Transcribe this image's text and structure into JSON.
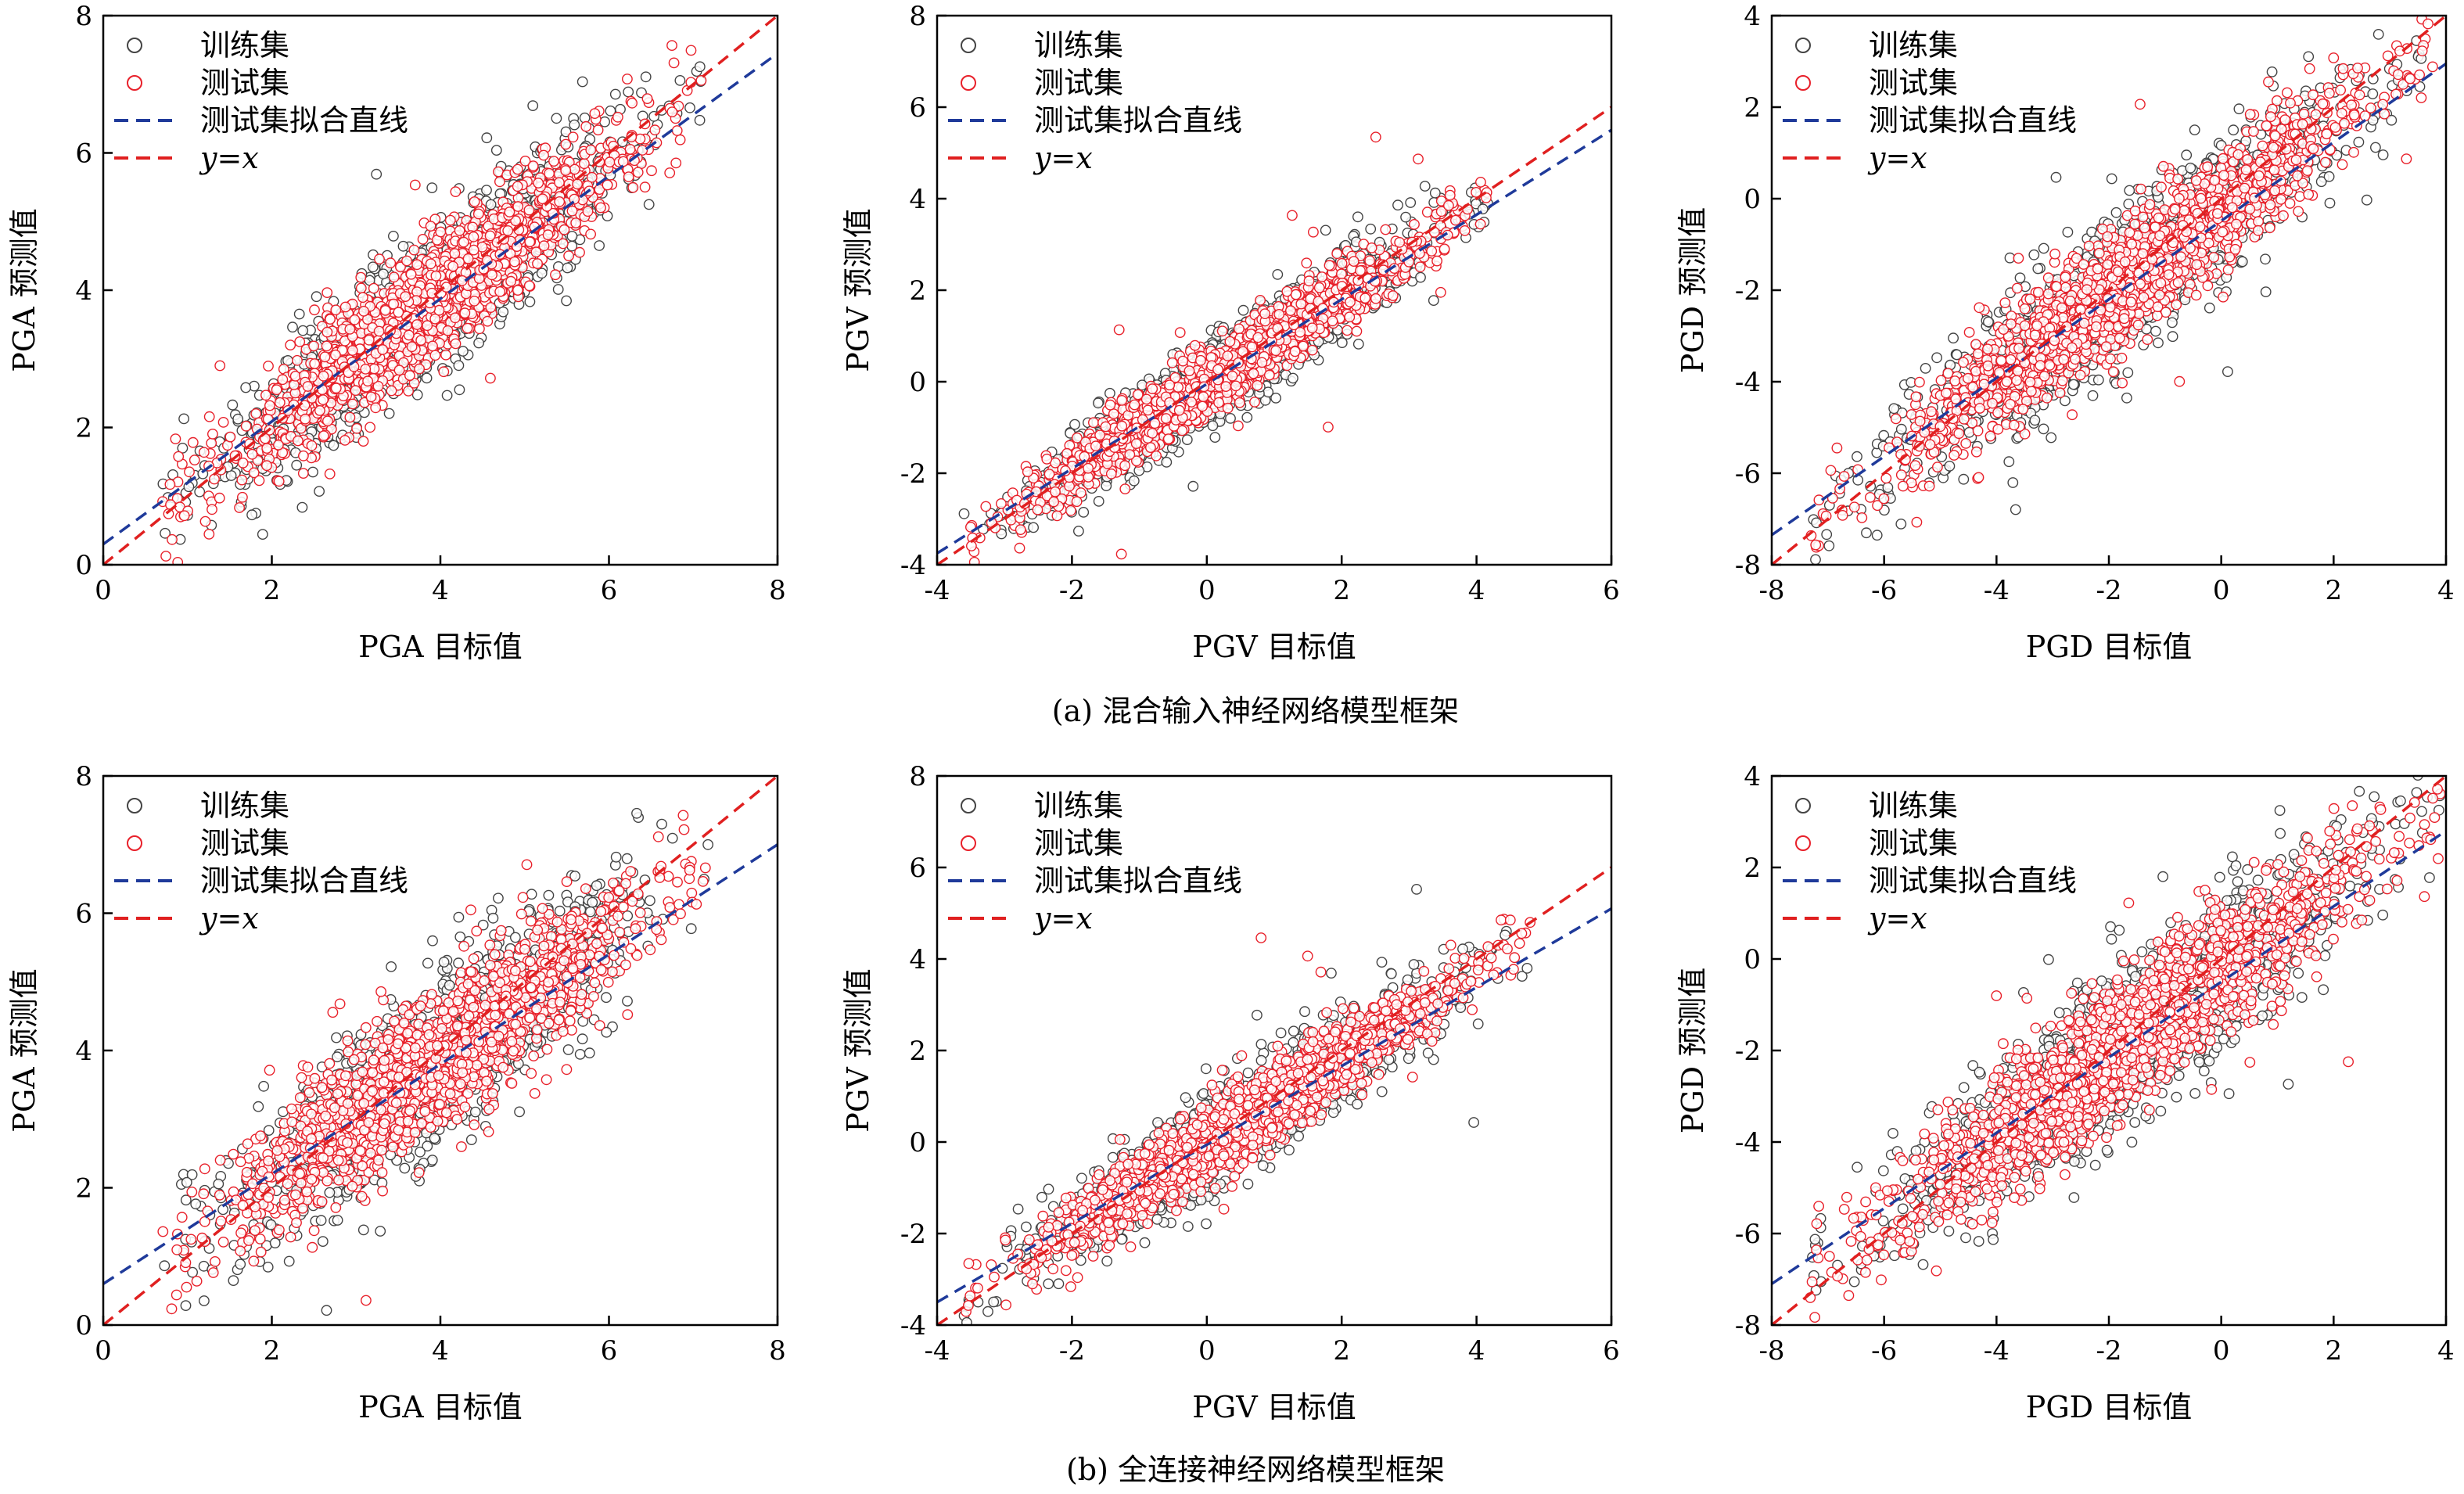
{
  "legend": {
    "train_label": "训练集",
    "test_label": "测试集",
    "fit_label": "测试集拟合直线",
    "yx_label_y": "y",
    "yx_label_eq": "=",
    "yx_label_x": "x",
    "placement": "top-left"
  },
  "colors": {
    "train": "#444444",
    "test": "#e8202a",
    "fit_line": "#1f3a9a",
    "yx_line": "#e02020",
    "axis": "#000000"
  },
  "captions": [
    "(a) 混合输入神经网络模型框架",
    "(b) 全连接神经网络模型框架"
  ],
  "chart_data": [
    {
      "type": "scatter",
      "row": "a",
      "xlabel": "PGA 目标值",
      "ylabel": "PGA 预测值",
      "xlim": [
        0,
        8
      ],
      "ylim": [
        0,
        8
      ],
      "xticks": [
        0,
        2,
        4,
        6,
        8
      ],
      "yticks": [
        0,
        2,
        4,
        6,
        8
      ],
      "fit_line": {
        "x": [
          0,
          8
        ],
        "y": [
          0.3,
          7.45
        ]
      },
      "yx_line": {
        "x": [
          0,
          8
        ],
        "y": [
          0,
          8
        ]
      },
      "distribution": {
        "x_range": [
          0.7,
          7.1
        ],
        "spread_test": 0.42,
        "spread_train": 0.52,
        "outlier_x": 0.45,
        "outlier_y": 1.4
      },
      "grid": false
    },
    {
      "type": "scatter",
      "row": "a",
      "xlabel": "PGV 目标值",
      "ylabel": "PGV 预测值",
      "xlim": [
        -4,
        6
      ],
      "ylim": [
        -4,
        8
      ],
      "xticks": [
        -4,
        -2,
        0,
        2,
        4,
        6
      ],
      "yticks": [
        -4,
        -2,
        0,
        2,
        4,
        6,
        8
      ],
      "fit_line": {
        "x": [
          -4,
          6
        ],
        "y": [
          -3.75,
          5.5
        ]
      },
      "yx_line": {
        "x": [
          -4,
          6
        ],
        "y": [
          -4,
          6
        ]
      },
      "distribution": {
        "x_range": [
          -3.6,
          4.2
        ],
        "spread_test": 0.35,
        "spread_train": 0.45,
        "outlier_x": 0.35,
        "outlier_y": 2.6
      },
      "grid": false
    },
    {
      "type": "scatter",
      "row": "a",
      "xlabel": "PGD 目标值",
      "ylabel": "PGD 预测值",
      "xlim": [
        -8,
        4
      ],
      "ylim": [
        -8,
        4
      ],
      "xticks": [
        -8,
        -6,
        -4,
        -2,
        0,
        2,
        4
      ],
      "yticks": [
        -8,
        -6,
        -4,
        -2,
        0,
        2,
        4
      ],
      "fit_line": {
        "x": [
          -8,
          4
        ],
        "y": [
          -7.35,
          2.95
        ]
      },
      "yx_line": {
        "x": [
          -8,
          4
        ],
        "y": [
          -8,
          4
        ]
      },
      "distribution": {
        "x_range": [
          -7.3,
          3.8
        ],
        "spread_test": 0.62,
        "spread_train": 0.75,
        "outlier_x": 0.6,
        "outlier_y": 3.2
      },
      "grid": false
    },
    {
      "type": "scatter",
      "row": "b",
      "xlabel": "PGA 目标值",
      "ylabel": "PGA 预测值",
      "xlim": [
        0,
        8
      ],
      "ylim": [
        0,
        8
      ],
      "xticks": [
        0,
        2,
        4,
        6,
        8
      ],
      "yticks": [
        0,
        2,
        4,
        6,
        8
      ],
      "fit_line": {
        "x": [
          0,
          8
        ],
        "y": [
          0.6,
          7.0
        ]
      },
      "yx_line": {
        "x": [
          0,
          8
        ],
        "y": [
          0,
          8
        ]
      },
      "distribution": {
        "x_range": [
          0.7,
          7.2
        ],
        "spread_test": 0.5,
        "spread_train": 0.6,
        "outlier_x": 0.5,
        "outlier_y": 1.6
      },
      "grid": false
    },
    {
      "type": "scatter",
      "row": "b",
      "xlabel": "PGV 目标值",
      "ylabel": "PGV 预测值",
      "xlim": [
        -4,
        6
      ],
      "ylim": [
        -4,
        8
      ],
      "xticks": [
        -4,
        -2,
        0,
        2,
        4,
        6
      ],
      "yticks": [
        -4,
        -2,
        0,
        2,
        4,
        6,
        8
      ],
      "fit_line": {
        "x": [
          -4,
          6
        ],
        "y": [
          -3.5,
          5.1
        ]
      },
      "yx_line": {
        "x": [
          -4,
          6
        ],
        "y": [
          -4,
          6
        ]
      },
      "distribution": {
        "x_range": [
          -3.6,
          4.8
        ],
        "spread_test": 0.4,
        "spread_train": 0.5,
        "outlier_x": 0.4,
        "outlier_y": 2.8
      },
      "grid": false
    },
    {
      "type": "scatter",
      "row": "b",
      "xlabel": "PGD 目标值",
      "ylabel": "PGD 预测值",
      "xlim": [
        -8,
        4
      ],
      "ylim": [
        -8,
        4
      ],
      "xticks": [
        -8,
        -6,
        -4,
        -2,
        0,
        2,
        4
      ],
      "yticks": [
        -8,
        -6,
        -4,
        -2,
        0,
        2,
        4
      ],
      "fit_line": {
        "x": [
          -8,
          4
        ],
        "y": [
          -7.1,
          2.8
        ]
      },
      "yx_line": {
        "x": [
          -8,
          4
        ],
        "y": [
          -8,
          4
        ]
      },
      "distribution": {
        "x_range": [
          -7.4,
          3.9
        ],
        "spread_test": 0.7,
        "spread_train": 0.85,
        "outlier_x": 0.65,
        "outlier_y": 3.0
      },
      "grid": false
    }
  ]
}
